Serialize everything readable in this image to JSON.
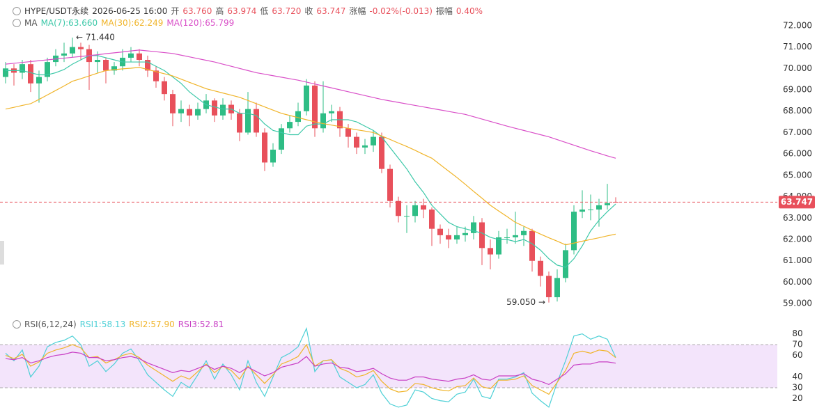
{
  "chart_data": [
    {
      "type": "candlestick",
      "title": "HYPE/USDT永续",
      "date": "2026-06-25 16:00",
      "info": [
        {
          "label": "开",
          "value": "63.760"
        },
        {
          "label": "高",
          "value": "63.974"
        },
        {
          "label": "低",
          "value": "63.720"
        },
        {
          "label": "收",
          "value": "63.747"
        },
        {
          "label": "涨幅",
          "value": "-0.02%(-0.013)"
        },
        {
          "label": "振幅",
          "value": "0.40%"
        }
      ],
      "legend_title": "MA",
      "up_color": "#2ebd85",
      "down_color": "#e8505b",
      "open": [
        69.6,
        70.0,
        69.8,
        70.2,
        69.3,
        69.6,
        70.3,
        70.6,
        70.7,
        71.0,
        70.9,
        70.3,
        70.4,
        69.9,
        70.1,
        70.5,
        70.7,
        70.4,
        69.9,
        69.4,
        68.8,
        67.9,
        68.1,
        67.8,
        68.1,
        68.5,
        67.8,
        68.3,
        67.9,
        67.0,
        68.1,
        67.0,
        65.6,
        66.2,
        67.2,
        67.5,
        68.0,
        69.2,
        67.2,
        67.9,
        68.0,
        67.2,
        66.8,
        66.3,
        66.4,
        66.8,
        65.3,
        63.8,
        63.1,
        63.1,
        63.6,
        63.4,
        62.5,
        62.2,
        62.0,
        62.2,
        62.3,
        62.8,
        61.6,
        61.3,
        62.1,
        62.1,
        62.2,
        62.4,
        61.0,
        60.3,
        59.3,
        60.2,
        61.5,
        63.3,
        63.4,
        63.4,
        63.6,
        63.76
      ],
      "high": [
        70.3,
        70.2,
        70.4,
        70.4,
        69.9,
        70.5,
        70.9,
        71.2,
        71.44,
        71.2,
        71.1,
        70.8,
        70.5,
        70.3,
        70.9,
        71.0,
        70.9,
        70.6,
        70.1,
        69.6,
        69.0,
        68.5,
        68.3,
        68.4,
        68.8,
        68.6,
        68.6,
        68.5,
        68.1,
        68.9,
        68.4,
        67.2,
        66.5,
        67.4,
        67.8,
        68.4,
        69.5,
        69.4,
        69.4,
        68.3,
        68.2,
        67.4,
        67.0,
        66.7,
        67.1,
        67.0,
        65.5,
        64.0,
        63.6,
        63.8,
        63.9,
        63.5,
        62.7,
        62.5,
        62.6,
        62.6,
        63.1,
        63.0,
        62.0,
        62.4,
        62.5,
        63.3,
        62.6,
        62.5,
        61.2,
        60.5,
        60.6,
        61.8,
        63.6,
        64.3,
        64.1,
        63.9,
        64.6,
        63.974
      ],
      "low": [
        69.3,
        69.2,
        69.5,
        68.9,
        68.4,
        69.4,
        70.1,
        70.3,
        70.5,
        70.4,
        69.0,
        69.8,
        69.3,
        69.7,
        69.9,
        70.3,
        70.1,
        69.6,
        69.1,
        68.5,
        67.3,
        67.5,
        67.3,
        67.6,
        67.9,
        67.5,
        67.6,
        67.6,
        66.6,
        66.9,
        66.8,
        65.2,
        65.4,
        66.0,
        67.0,
        67.3,
        67.8,
        66.8,
        67.0,
        67.5,
        66.8,
        66.3,
        66.0,
        66.0,
        66.1,
        65.1,
        63.5,
        62.8,
        62.3,
        62.8,
        63.0,
        61.7,
        61.8,
        61.6,
        61.8,
        61.9,
        62.0,
        60.8,
        60.6,
        61.1,
        61.8,
        61.8,
        61.7,
        60.5,
        59.8,
        59.05,
        59.1,
        60.0,
        61.3,
        63.0,
        62.9,
        62.6,
        63.4,
        63.72
      ],
      "close": [
        70.0,
        69.8,
        70.2,
        69.3,
        69.6,
        70.3,
        70.6,
        70.7,
        71.0,
        70.9,
        70.3,
        70.4,
        69.9,
        70.1,
        70.5,
        70.7,
        70.4,
        69.9,
        69.4,
        68.8,
        67.9,
        68.1,
        67.8,
        68.1,
        68.5,
        67.8,
        68.3,
        67.9,
        67.0,
        68.1,
        67.0,
        65.6,
        66.2,
        67.2,
        67.5,
        68.0,
        69.2,
        67.2,
        67.9,
        68.0,
        67.2,
        66.8,
        66.3,
        66.4,
        66.8,
        65.3,
        63.8,
        63.1,
        63.1,
        63.6,
        63.4,
        62.5,
        62.2,
        62.0,
        62.2,
        62.3,
        62.8,
        61.6,
        61.3,
        62.1,
        62.1,
        62.2,
        62.4,
        61.0,
        60.3,
        59.3,
        60.2,
        61.5,
        63.3,
        63.4,
        63.4,
        63.6,
        63.7,
        63.747
      ],
      "series": [
        {
          "name": "MA(7):63.660",
          "color": "#3cc8a8",
          "values": [
            69.9,
            69.9,
            69.9,
            69.8,
            69.7,
            69.7,
            69.8,
            69.95,
            70.2,
            70.4,
            70.6,
            70.6,
            70.5,
            70.4,
            70.3,
            70.3,
            70.3,
            70.3,
            70.1,
            69.9,
            69.6,
            69.3,
            68.9,
            68.6,
            68.3,
            68.2,
            68.1,
            68.1,
            67.9,
            67.9,
            67.8,
            67.4,
            67.1,
            67.0,
            66.9,
            66.9,
            67.3,
            67.4,
            67.4,
            67.6,
            67.6,
            67.6,
            67.5,
            67.3,
            67.1,
            66.8,
            66.3,
            65.8,
            65.3,
            64.7,
            64.2,
            63.6,
            63.2,
            62.8,
            62.6,
            62.5,
            62.4,
            62.3,
            62.1,
            62.0,
            62.0,
            61.9,
            62.0,
            61.8,
            61.5,
            61.1,
            60.8,
            60.7,
            61.1,
            61.7,
            62.4,
            62.9,
            63.3,
            63.66
          ]
        },
        {
          "name": "MA(30):62.249",
          "color": "#f0b429",
          "values": [
            68.1,
            68.18,
            68.27,
            68.35,
            68.55,
            68.76,
            68.97,
            69.18,
            69.4,
            69.52,
            69.65,
            69.78,
            69.9,
            69.94,
            69.98,
            70.01,
            70.05,
            69.95,
            69.85,
            69.75,
            69.65,
            69.5,
            69.35,
            69.2,
            69.05,
            68.95,
            68.85,
            68.75,
            68.65,
            68.5,
            68.35,
            68.2,
            68.05,
            67.9,
            67.8,
            67.7,
            67.6,
            67.5,
            67.42,
            67.35,
            67.28,
            67.2,
            67.13,
            67.07,
            67.0,
            66.84,
            66.68,
            66.51,
            66.35,
            66.17,
            65.98,
            65.8,
            65.5,
            65.2,
            64.9,
            64.58,
            64.25,
            63.93,
            63.6,
            63.33,
            63.07,
            62.8,
            62.62,
            62.43,
            62.25,
            62.08,
            61.92,
            61.75,
            61.83,
            61.92,
            62.0,
            62.08,
            62.17,
            62.249
          ]
        },
        {
          "name": "MA(120):65.799",
          "color": "#d94fc8",
          "values": [
            70.2,
            70.24,
            70.28,
            70.32,
            70.36,
            70.4,
            70.44,
            70.48,
            70.52,
            70.56,
            70.6,
            70.64,
            70.69,
            70.73,
            70.77,
            70.82,
            70.86,
            70.82,
            70.78,
            70.74,
            70.7,
            70.62,
            70.54,
            70.46,
            70.38,
            70.3,
            70.2,
            70.1,
            70.0,
            69.9,
            69.8,
            69.73,
            69.66,
            69.59,
            69.52,
            69.45,
            69.36,
            69.27,
            69.18,
            69.09,
            69.0,
            68.91,
            68.82,
            68.73,
            68.64,
            68.55,
            68.48,
            68.41,
            68.34,
            68.27,
            68.2,
            68.13,
            68.06,
            67.99,
            67.92,
            67.85,
            67.74,
            67.63,
            67.52,
            67.41,
            67.3,
            67.2,
            67.1,
            67.0,
            66.9,
            66.8,
            66.67,
            66.54,
            66.41,
            66.28,
            66.15,
            66.03,
            65.91,
            65.799
          ]
        }
      ],
      "annotations": [
        {
          "label": "← 71.440",
          "value": 71.44
        },
        {
          "label": "59.050 →",
          "value": 59.05
        }
      ],
      "last_price_line": true,
      "ylim": [
        58.55,
        73.2
      ],
      "yticks": [
        {
          "value": 72,
          "label": "72.000"
        },
        {
          "value": 71,
          "label": "71.000"
        },
        {
          "value": 70,
          "label": "70.000"
        },
        {
          "value": 69,
          "label": "69.000"
        },
        {
          "value": 68,
          "label": "68.000"
        },
        {
          "value": 67,
          "label": "67.000"
        },
        {
          "value": 66,
          "label": "66.000"
        },
        {
          "value": 65,
          "label": "65.000"
        },
        {
          "value": 64,
          "label": "64.000"
        },
        {
          "value": 63,
          "label": "63.000"
        },
        {
          "value": 62,
          "label": "62.000"
        },
        {
          "value": 61,
          "label": "61.000"
        },
        {
          "value": 60,
          "label": "60.000"
        },
        {
          "value": 59,
          "label": "59.000"
        }
      ]
    },
    {
      "type": "line",
      "title": "RSI(6,12,24)",
      "series": [
        {
          "name": "RSI1:58.13",
          "color": "#4dd0d6",
          "values": [
            62,
            55,
            65,
            40,
            50,
            68,
            72,
            74,
            78,
            70,
            50,
            55,
            45,
            52,
            62,
            66,
            55,
            42,
            35,
            28,
            22,
            35,
            30,
            42,
            55,
            38,
            52,
            42,
            28,
            55,
            35,
            22,
            40,
            58,
            62,
            68,
            85,
            45,
            55,
            56,
            40,
            35,
            30,
            33,
            42,
            25,
            15,
            12,
            14,
            28,
            26,
            20,
            18,
            17,
            24,
            26,
            38,
            22,
            20,
            38,
            38,
            40,
            44,
            25,
            18,
            12,
            35,
            55,
            78,
            80,
            75,
            78,
            75,
            58.13
          ]
        },
        {
          "name": "RSI2:57.90",
          "color": "#f0b429",
          "values": [
            60,
            57,
            61,
            50,
            54,
            62,
            65,
            67,
            70,
            67,
            58,
            59,
            53,
            56,
            60,
            62,
            58,
            51,
            46,
            41,
            36,
            41,
            38,
            45,
            52,
            44,
            50,
            46,
            38,
            50,
            42,
            34,
            42,
            52,
            55,
            59,
            70,
            50,
            55,
            56,
            48,
            45,
            40,
            42,
            46,
            36,
            29,
            26,
            27,
            34,
            33,
            30,
            28,
            27,
            31,
            32,
            39,
            31,
            29,
            37,
            37,
            38,
            41,
            32,
            28,
            24,
            35,
            46,
            62,
            64,
            62,
            65,
            64,
            57.9
          ]
        },
        {
          "name": "RSI3:52.81",
          "color": "#c83ec4",
          "values": [
            57,
            56,
            58,
            53,
            55,
            58,
            60,
            61,
            63,
            62,
            58,
            58,
            55,
            56,
            58,
            59,
            57,
            53,
            50,
            47,
            44,
            46,
            45,
            48,
            51,
            47,
            50,
            48,
            44,
            49,
            45,
            41,
            44,
            49,
            51,
            53,
            59,
            50,
            52,
            53,
            49,
            48,
            45,
            46,
            48,
            43,
            39,
            37,
            37,
            40,
            40,
            38,
            37,
            36,
            38,
            39,
            42,
            38,
            37,
            41,
            41,
            41,
            43,
            38,
            36,
            33,
            38,
            43,
            51,
            52,
            52,
            54,
            54,
            52.81
          ]
        }
      ],
      "band": [
        30,
        70
      ],
      "band_color": "#f3e4fb",
      "ylim": [
        10,
        92
      ],
      "yticks": [
        80,
        70,
        60,
        40,
        30,
        20
      ]
    }
  ]
}
